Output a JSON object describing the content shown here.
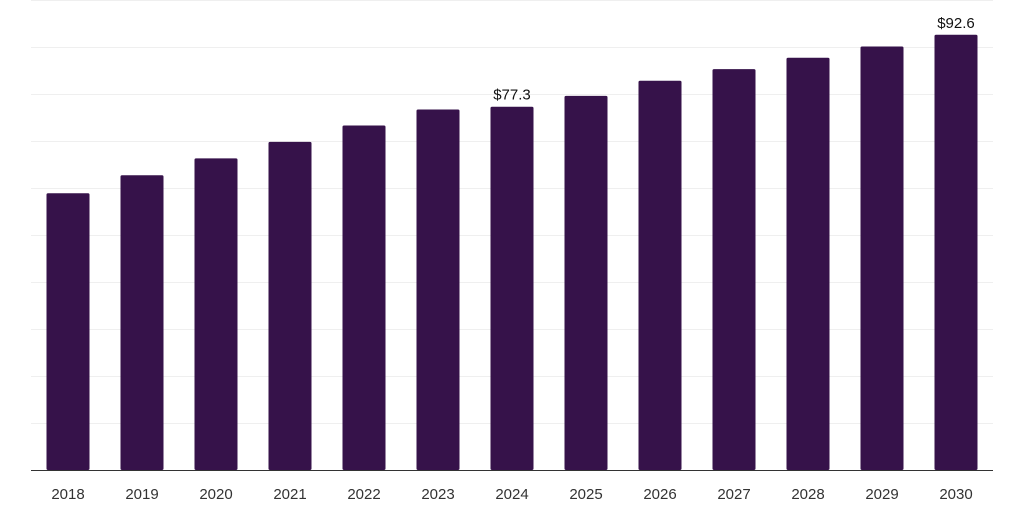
{
  "chart_data": {
    "type": "bar",
    "title": "",
    "xlabel": "",
    "ylabel": "",
    "categories": [
      "2018",
      "2019",
      "2020",
      "2021",
      "2022",
      "2023",
      "2024",
      "2025",
      "2026",
      "2027",
      "2028",
      "2029",
      "2030"
    ],
    "values": [
      58.9,
      62.7,
      66.3,
      69.8,
      73.3,
      76.7,
      77.3,
      79.6,
      82.8,
      85.3,
      87.7,
      90.1,
      92.6
    ],
    "ylim": [
      0,
      100
    ],
    "data_labels": [
      {
        "category": "2024",
        "text": "$77.3"
      },
      {
        "category": "2030",
        "text": "$92.6"
      }
    ],
    "bar_color": "#36124a",
    "grid": true,
    "legend": "none"
  }
}
